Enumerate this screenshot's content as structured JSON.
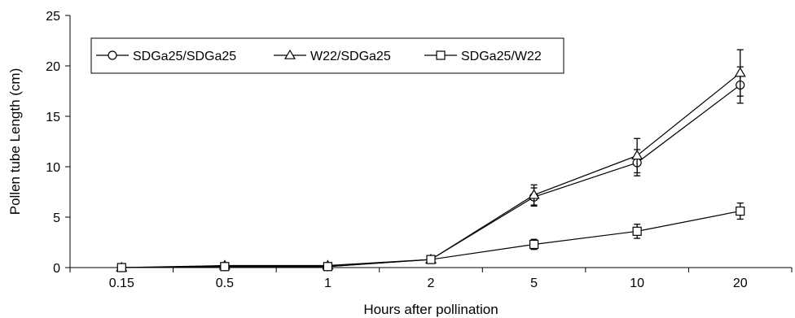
{
  "chart_data": {
    "type": "line",
    "title": "",
    "xlabel": "Hours after pollination",
    "ylabel": "Pollen tube Length (cm)",
    "categories": [
      "0.15",
      "0.5",
      "1",
      "2",
      "5",
      "10",
      "20"
    ],
    "ylim": [
      0,
      25
    ],
    "yticks": [
      "0",
      "5",
      "10",
      "15",
      "20",
      "25"
    ],
    "grid": false,
    "legend_position": "top-left",
    "series": [
      {
        "name": "SDGa25/SDGa25",
        "marker": "circle",
        "values": [
          0.0,
          0.1,
          0.1,
          0.8,
          7.0,
          10.4,
          18.1
        ],
        "errors": [
          0.1,
          0.1,
          0.1,
          0.2,
          0.9,
          1.3,
          1.8
        ]
      },
      {
        "name": "W22/SDGa25",
        "marker": "triangle",
        "values": [
          0.0,
          0.2,
          0.2,
          0.8,
          7.2,
          11.1,
          19.3
        ],
        "errors": [
          0.1,
          0.1,
          0.1,
          0.2,
          1.0,
          1.7,
          2.3
        ]
      },
      {
        "name": "SDGa25/W22",
        "marker": "square",
        "values": [
          0.0,
          0.1,
          0.1,
          0.8,
          2.3,
          3.6,
          5.6
        ],
        "errors": [
          0.1,
          0.1,
          0.1,
          0.2,
          0.5,
          0.7,
          0.8
        ]
      }
    ]
  }
}
